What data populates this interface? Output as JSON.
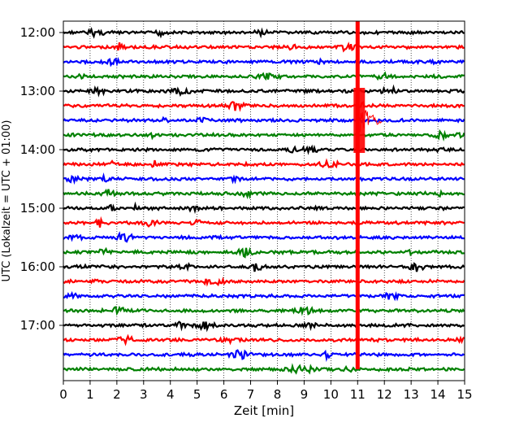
{
  "chart_data": {
    "type": "line",
    "title": "",
    "xlabel": "Zeit  [min]",
    "ylabel": "UTC (Lokalzeit = UTC + 01:00)",
    "xlim": [
      0,
      15
    ],
    "x_ticks": [
      "0",
      "1",
      "2",
      "3",
      "4",
      "5",
      "6",
      "7",
      "8",
      "9",
      "10",
      "11",
      "12",
      "13",
      "14",
      "15"
    ],
    "y_ticks": [
      "12:00",
      "13:00",
      "14:00",
      "15:00",
      "16:00",
      "17:00"
    ],
    "trace_interval_min": 15,
    "trace_start": "12:00",
    "trace_end": "17:45",
    "trace_colors": [
      "#000000",
      "#ff0000",
      "#0000ff",
      "#008000"
    ],
    "grid": "vertical dotted",
    "event": {
      "onset_min": 11.0,
      "strong_from": "12:00",
      "strong_to": "17:45",
      "peak_trace": "13:30",
      "color": "#ff0000"
    }
  }
}
